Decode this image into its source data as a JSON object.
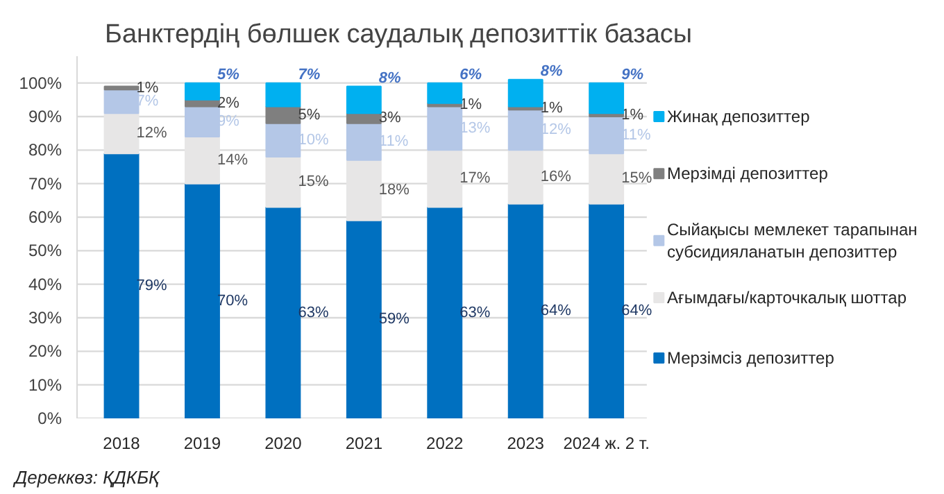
{
  "chart_data": {
    "type": "bar",
    "stacked": true,
    "title": "Банктердің бөлшек саудалық депозиттік базасы",
    "categories": [
      "2018",
      "2019",
      "2020",
      "2021",
      "2022",
      "2023",
      "2024 ж. 2 т."
    ],
    "series": [
      {
        "name": "Мерзімсіз депозиттер",
        "color": "#0070c0",
        "values": [
          79,
          70,
          63,
          59,
          63,
          64,
          64
        ],
        "value_labels": [
          "79%",
          "70%",
          "63%",
          "59%",
          "63%",
          "64%",
          "64%"
        ]
      },
      {
        "name": "Ағымдағы/карточкалық шоттар",
        "color": "#e7e6e6",
        "values": [
          12,
          14,
          15,
          18,
          17,
          16,
          15
        ],
        "value_labels": [
          "12%",
          "14%",
          "15%",
          "18%",
          "17%",
          "16%",
          "15%"
        ]
      },
      {
        "name": "Сыйақысы мемлекет тарапынан субсидияланатын депозиттер",
        "color": "#b4c7e7",
        "values": [
          7,
          9,
          10,
          11,
          13,
          12,
          11
        ],
        "value_labels": [
          "7%",
          "9%",
          "10%",
          "11%",
          "13%",
          "12%",
          "11%"
        ]
      },
      {
        "name": "Мерзімді депозиттер",
        "color": "#7f7f7f",
        "values": [
          1,
          2,
          5,
          3,
          1,
          1,
          1
        ],
        "value_labels": [
          "1%",
          "2%",
          "5%",
          "3%",
          "1%",
          "1%",
          "1%"
        ]
      },
      {
        "name": "Жинақ депозиттер",
        "color": "#00b0f0",
        "values": [
          null,
          5,
          7,
          8,
          6,
          8,
          9
        ],
        "value_labels": [
          null,
          "5%",
          "7%",
          "8%",
          "6%",
          "8%",
          "9%"
        ]
      }
    ],
    "ylim": [
      0,
      108
    ],
    "yticks": [
      {
        "value": 0,
        "label": "0%"
      },
      {
        "value": 10,
        "label": "10%"
      },
      {
        "value": 20,
        "label": "20%"
      },
      {
        "value": 30,
        "label": "30%"
      },
      {
        "value": 40,
        "label": "40%"
      },
      {
        "value": 50,
        "label": "50%"
      },
      {
        "value": 60,
        "label": "60%"
      },
      {
        "value": 70,
        "label": "70%"
      },
      {
        "value": 80,
        "label": "80%"
      },
      {
        "value": 90,
        "label": "90%"
      },
      {
        "value": 100,
        "label": "100%"
      }
    ],
    "grid": "y",
    "legend": "right",
    "annotations": [
      "Дереккөз: ҚДКБҚ"
    ]
  }
}
